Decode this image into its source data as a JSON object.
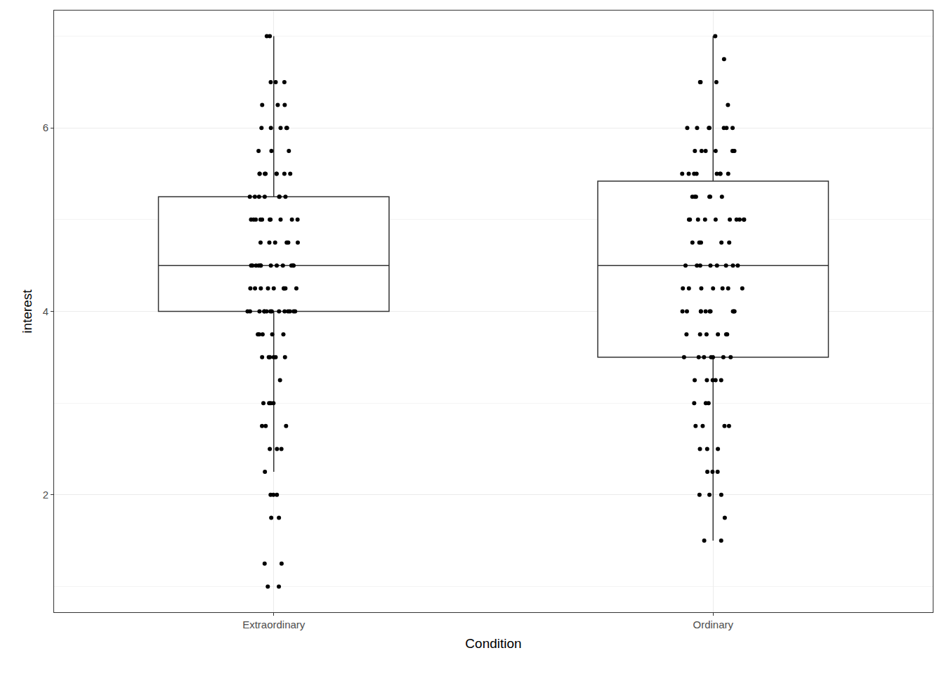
{
  "chart_data": {
    "type": "box",
    "x_label": "Condition",
    "y_label": "interest",
    "categories": [
      "Extraordinary",
      "Ordinary"
    ],
    "color": "#000000",
    "grid": true,
    "ylim": [
      0.72,
      7.28
    ],
    "yticks": [
      2,
      4,
      6
    ],
    "boxes": [
      {
        "category": "Extraordinary",
        "q1": 4,
        "median": 4.5,
        "q3": 5.25,
        "lower_whisker": 2.25,
        "upper_whisker": 7,
        "values": [
          7,
          7,
          6.5,
          6.5,
          6.5,
          6.25,
          6.25,
          6.25,
          6,
          6,
          6,
          6,
          6,
          5.75,
          5.75,
          5.75,
          5.5,
          5.5,
          5.5,
          5.5,
          5.5,
          5.5,
          5.5,
          5.5,
          5.25,
          5.25,
          5.25,
          5.25,
          5.25,
          5.25,
          5.25,
          5,
          5,
          5,
          5,
          5,
          5,
          5,
          5,
          5,
          5,
          4.75,
          4.75,
          4.75,
          4.75,
          4.75,
          4.75,
          4.5,
          4.5,
          4.5,
          4.5,
          4.5,
          4.5,
          4.5,
          4.5,
          4.5,
          4.5,
          4.5,
          4.5,
          4.25,
          4.25,
          4.25,
          4.25,
          4.25,
          4.25,
          4.25,
          4.25,
          4.25,
          4,
          4,
          4,
          4,
          4,
          4,
          4,
          4,
          4,
          4,
          4,
          4,
          4,
          4,
          3.75,
          3.75,
          3.75,
          3.75,
          3.75,
          3.5,
          3.5,
          3.5,
          3.5,
          3.5,
          3.5,
          3.25,
          3,
          3,
          3,
          3,
          2.75,
          2.75,
          2.75,
          2.5,
          2.5,
          2.5,
          2.25,
          2,
          2,
          2,
          1.75,
          1.75,
          1.25,
          1.25,
          1,
          1
        ]
      },
      {
        "category": "Ordinary",
        "q1": 3.5,
        "median": 4.5,
        "q3": 5.42,
        "lower_whisker": 1.5,
        "upper_whisker": 7,
        "values": [
          7,
          6.75,
          6.5,
          6.5,
          6.5,
          6.25,
          6,
          6,
          6,
          6,
          6,
          6,
          6,
          5.75,
          5.75,
          5.75,
          5.75,
          5.75,
          5.75,
          5.5,
          5.5,
          5.5,
          5.5,
          5.5,
          5.5,
          5.5,
          5.5,
          5.25,
          5.25,
          5.25,
          5.25,
          5.25,
          5.25,
          5,
          5,
          5,
          5,
          5,
          5,
          5,
          5,
          5,
          5,
          4.75,
          4.75,
          4.75,
          4.75,
          4.75,
          4.5,
          4.5,
          4.5,
          4.5,
          4.5,
          4.5,
          4.5,
          4.5,
          4.25,
          4.25,
          4.25,
          4.25,
          4.25,
          4.25,
          4.25,
          4,
          4,
          4,
          4,
          4,
          4,
          4,
          4,
          4,
          4,
          3.75,
          3.75,
          3.75,
          3.75,
          3.75,
          3.75,
          3.5,
          3.5,
          3.5,
          3.5,
          3.5,
          3.5,
          3.5,
          3.25,
          3.25,
          3.25,
          3.25,
          3.25,
          3,
          3,
          3,
          2.75,
          2.75,
          2.75,
          2.75,
          2.5,
          2.5,
          2.5,
          2.25,
          2.25,
          2.25,
          2,
          2,
          2,
          1.75,
          1.5,
          1.5
        ]
      }
    ]
  }
}
